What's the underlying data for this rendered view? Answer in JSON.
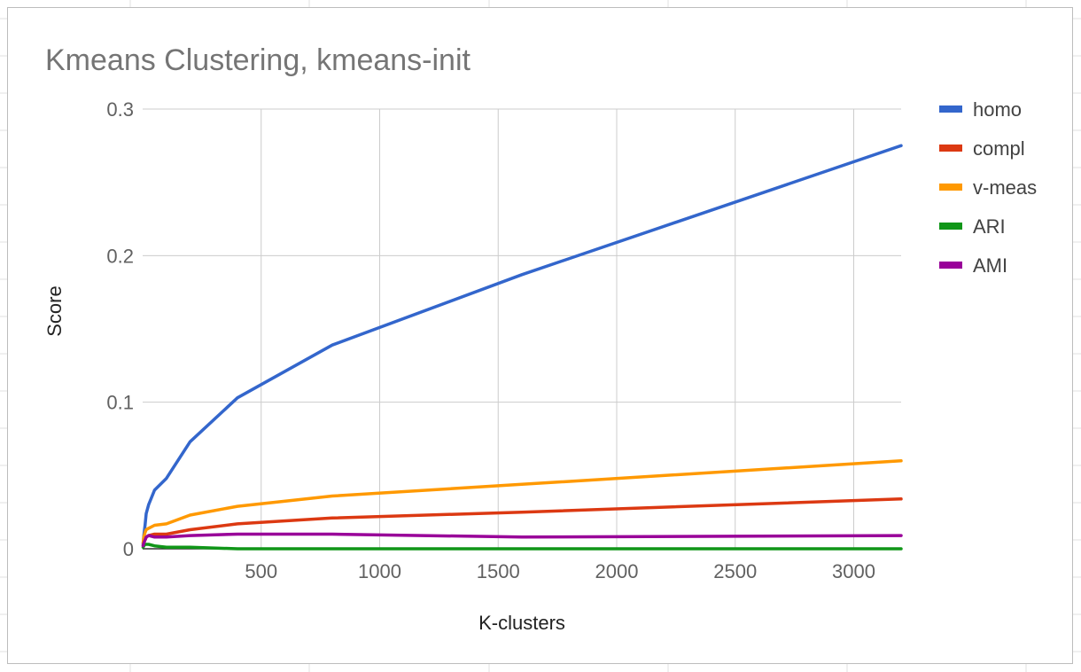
{
  "chart_data": {
    "type": "line",
    "title": "Kmeans Clustering, kmeans-init",
    "xlabel": "K-clusters",
    "ylabel": "Score",
    "xlim": [
      0,
      3200
    ],
    "ylim": [
      0,
      0.3
    ],
    "x_ticks": [
      500,
      1000,
      1500,
      2000,
      2500,
      3000
    ],
    "x_tick_labels": [
      "500",
      "1000",
      "1500",
      "2000",
      "2500",
      "3000"
    ],
    "y_ticks": [
      0,
      0.1,
      0.2,
      0.3
    ],
    "y_tick_labels": [
      "0",
      "0.1",
      "0.2",
      "0.3"
    ],
    "grid": true,
    "legend_position": "right",
    "x": [
      2,
      5,
      10,
      15,
      25,
      50,
      100,
      200,
      400,
      800,
      1600,
      3200
    ],
    "series": [
      {
        "name": "homo",
        "color": "#3366cc",
        "values": [
          0.003,
          0.009,
          0.016,
          0.024,
          0.03,
          0.04,
          0.048,
          0.073,
          0.103,
          0.139,
          0.187,
          0.275
        ]
      },
      {
        "name": "compl",
        "color": "#dc3912",
        "values": [
          0.002,
          0.004,
          0.006,
          0.008,
          0.009,
          0.01,
          0.01,
          0.013,
          0.017,
          0.021,
          0.025,
          0.034
        ]
      },
      {
        "name": "v-meas",
        "color": "#ff9900",
        "values": [
          0.004,
          0.008,
          0.011,
          0.013,
          0.014,
          0.016,
          0.017,
          0.023,
          0.029,
          0.036,
          0.044,
          0.06
        ]
      },
      {
        "name": "ARI",
        "color": "#109618",
        "values": [
          0.001,
          0.002,
          0.003,
          0.003,
          0.003,
          0.002,
          0.001,
          0.001,
          0.0,
          0.0,
          0.0,
          0.0
        ]
      },
      {
        "name": "AMI",
        "color": "#990099",
        "values": [
          0.002,
          0.004,
          0.006,
          0.008,
          0.009,
          0.008,
          0.008,
          0.009,
          0.01,
          0.01,
          0.008,
          0.009
        ]
      }
    ]
  }
}
